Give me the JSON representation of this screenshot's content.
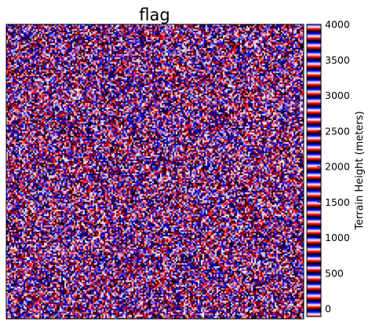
{
  "chart_data": {
    "type": "heatmap",
    "title": "flag",
    "colormap": "flag",
    "colormap_colors": [
      "#ff0000",
      "#ffffff",
      "#0000ff",
      "#000000"
    ],
    "colorbar": {
      "label": "Terrain Height (meters)",
      "ticks": [
        0,
        500,
        1000,
        1500,
        2000,
        2500,
        3000,
        3500,
        4000
      ],
      "tick_labels": [
        "0",
        "500",
        "1000",
        "1500",
        "2000",
        "2500",
        "3000",
        "3500",
        "4000"
      ],
      "range": [
        0,
        4000
      ]
    },
    "xticks": [],
    "yticks": [],
    "grid": false
  }
}
